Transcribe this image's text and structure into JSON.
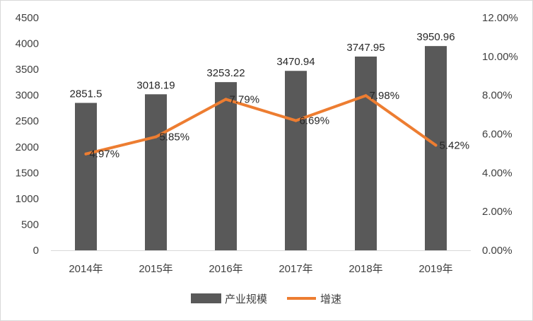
{
  "colors": {
    "bar": "#595959",
    "line": "#ED7D31",
    "text": "#404040",
    "axis": "#d9d9d9"
  },
  "chart_data": {
    "type": "bar",
    "categories": [
      "2014年",
      "2015年",
      "2016年",
      "2017年",
      "2018年",
      "2019年"
    ],
    "series": [
      {
        "name": "产业规模",
        "type": "bar",
        "axis": "left",
        "values": [
          2851.5,
          3018.19,
          3253.22,
          3470.94,
          3747.95,
          3950.96
        ],
        "labels": [
          "2851.5",
          "3018.19",
          "3253.22",
          "3470.94",
          "3747.95",
          "3950.96"
        ]
      },
      {
        "name": "增速",
        "type": "line",
        "axis": "right",
        "values": [
          4.97,
          5.85,
          7.79,
          6.69,
          7.98,
          5.42
        ],
        "labels": [
          "4.97%",
          "5.85%",
          "7.79%",
          "6.69%",
          "7.98%",
          "5.42%"
        ]
      }
    ],
    "y_left": {
      "range": [
        0,
        4500
      ],
      "ticks": [
        "0",
        "500",
        "1000",
        "1500",
        "2000",
        "2500",
        "3000",
        "3500",
        "4000",
        "4500"
      ]
    },
    "y_right": {
      "range": [
        0,
        12
      ],
      "ticks": [
        "0.00%",
        "2.00%",
        "4.00%",
        "6.00%",
        "8.00%",
        "10.00%",
        "12.00%"
      ]
    },
    "grid": false,
    "legend_position": "bottom"
  }
}
